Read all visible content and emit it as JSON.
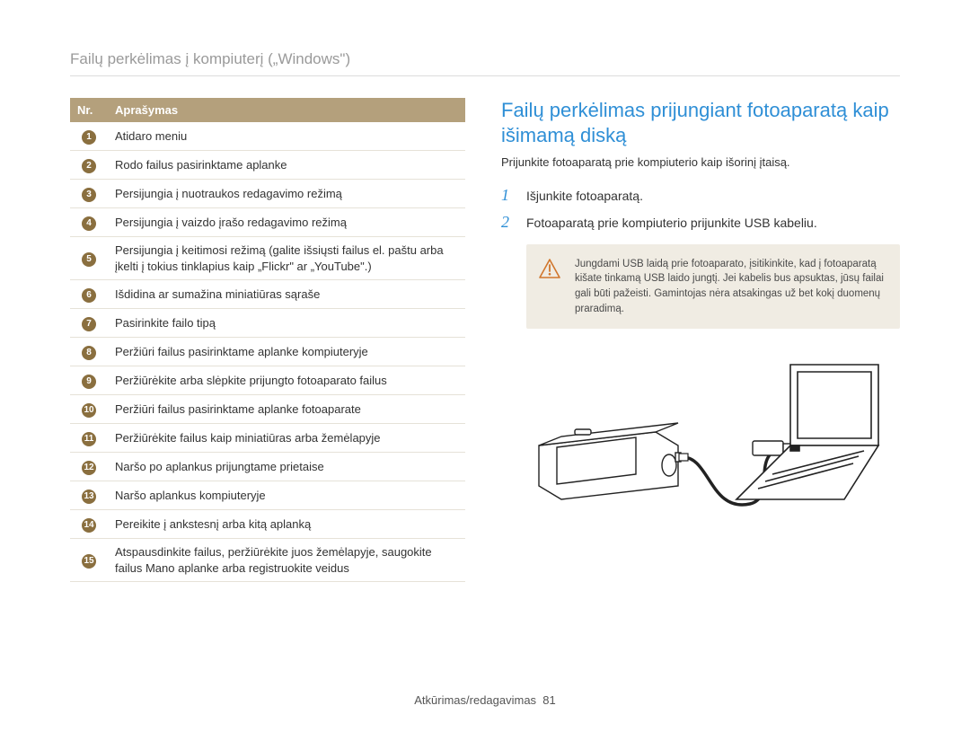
{
  "header": {
    "title": "Failų perkėlimas į kompiuterį („Windows\")"
  },
  "table": {
    "col_nr": "Nr.",
    "col_desc": "Aprašymas",
    "header_bg": "#b4a07c",
    "header_fg": "#ffffff",
    "rows": [
      {
        "n": "1",
        "d": "Atidaro meniu"
      },
      {
        "n": "2",
        "d": "Rodo failus pasirinktame aplanke"
      },
      {
        "n": "3",
        "d": "Persijungia į nuotraukos redagavimo režimą"
      },
      {
        "n": "4",
        "d": "Persijungia į vaizdo įrašo redagavimo režimą"
      },
      {
        "n": "5",
        "d": "Persijungia į keitimosi režimą (galite išsiųsti failus el. paštu arba įkelti į tokius tinklapius kaip „Flickr\" ar „YouTube\".)"
      },
      {
        "n": "6",
        "d": "Išdidina ar sumažina miniatiūras sąraše"
      },
      {
        "n": "7",
        "d": "Pasirinkite failo tipą"
      },
      {
        "n": "8",
        "d": "Peržiūri failus pasirinktame aplanke kompiuteryje"
      },
      {
        "n": "9",
        "d": "Peržiūrėkite arba slėpkite prijungto fotoaparato failus"
      },
      {
        "n": "10",
        "d": "Peržiūri failus pasirinktame aplanke fotoaparate"
      },
      {
        "n": "11",
        "d": "Peržiūrėkite failus kaip miniatiūras arba žemėlapyje"
      },
      {
        "n": "12",
        "d": "Naršo po aplankus prijungtame prietaise"
      },
      {
        "n": "13",
        "d": "Naršo aplankus kompiuteryje"
      },
      {
        "n": "14",
        "d": "Pereikite į ankstesnį arba kitą aplanką"
      },
      {
        "n": "15",
        "d": "Atspausdinkite failus, peržiūrėkite juos žemėlapyje, saugokite failus Mano aplanke arba registruokite veidus"
      }
    ]
  },
  "right": {
    "title": "Failų perkėlimas prijungiant fotoaparatą kaip išimamą diską",
    "subtitle": "Prijunkite fotoaparatą prie kompiuterio kaip išorinį įtaisą.",
    "steps": [
      {
        "n": "1",
        "t": "Išjunkite fotoaparatą."
      },
      {
        "n": "2",
        "t": "Fotoaparatą prie kompiuterio prijunkite USB kabeliu."
      }
    ],
    "warning": {
      "text": "Jungdami USB laidą prie fotoaparato, įsitikinkite, kad į fotoaparatą kišate tinkamą USB laido jungtį. Jei kabelis bus apsuktas, jūsų failai gali būti pažeisti. Gamintojas nėra atsakingas už bet kokį duomenų praradimą.",
      "icon_color": "#d1762c",
      "bg": "#f0ece3"
    }
  },
  "footer": {
    "section": "Atkūrimas/redagavimas",
    "page": "81"
  },
  "colors": {
    "accent_blue": "#2f8fd6",
    "muted_header": "#9a9a9a",
    "circle_fill": "#8a6f3f"
  }
}
